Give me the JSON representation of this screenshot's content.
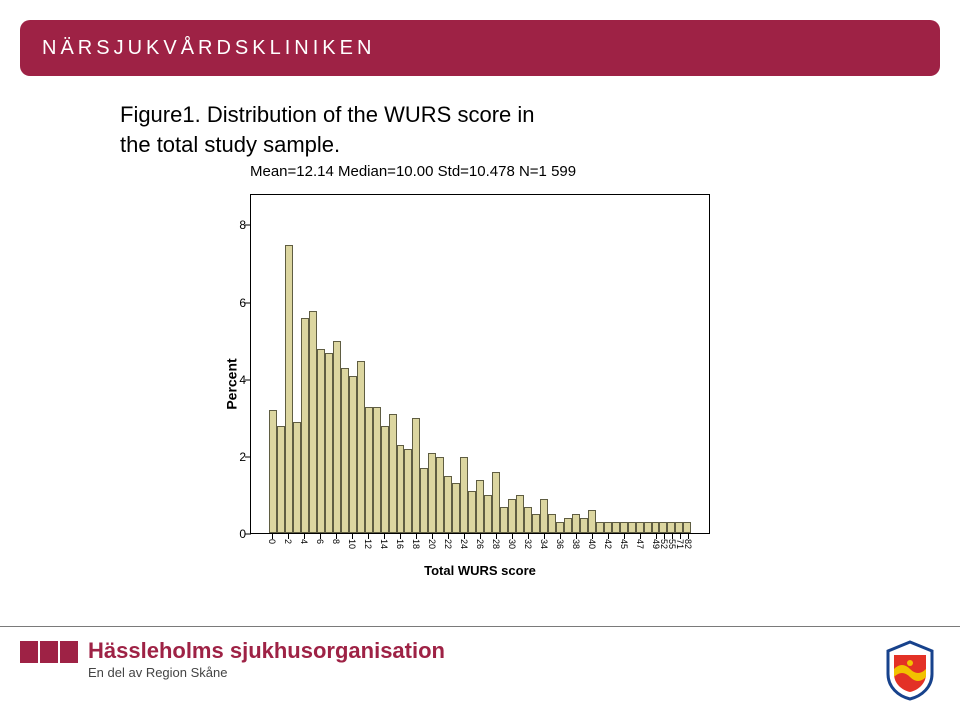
{
  "header": {
    "title": "NÄRSJUKVÅRDSKLINIKEN",
    "bg_color": "#9e2245",
    "text_color": "#ffffff"
  },
  "figure": {
    "title_line1": "Figure1. Distribution of the WURS score in",
    "title_line2": "the total study sample.",
    "stats": "Mean=12.14 Median=10.00 Std=10.478 N=1 599"
  },
  "chart": {
    "type": "bar",
    "ylabel": "Percent",
    "xlabel": "Total WURS score",
    "ylim": [
      0,
      8.8
    ],
    "yticks": [
      0,
      2,
      4,
      6,
      8
    ],
    "xtick_show_every": 2,
    "bar_fill": "#dcd6a0",
    "bar_stroke": "#5f5d42",
    "background": "#ffffff",
    "border_color": "#000000",
    "xtick_labels": [
      "0",
      "2",
      "4",
      "6",
      "8",
      "10",
      "12",
      "14",
      "16",
      "18",
      "20",
      "22",
      "24",
      "26",
      "28",
      "30",
      "32",
      "34",
      "36",
      "38",
      "40",
      "42",
      "45",
      "47",
      "49",
      "52",
      "55",
      "71",
      "82"
    ],
    "xtick_label_rotation": 90,
    "categories": [
      "0",
      "1",
      "2",
      "3",
      "4",
      "5",
      "6",
      "7",
      "8",
      "9",
      "10",
      "11",
      "12",
      "13",
      "14",
      "15",
      "16",
      "17",
      "18",
      "19",
      "20",
      "21",
      "22",
      "23",
      "24",
      "25",
      "26",
      "27",
      "28",
      "29",
      "30",
      "31",
      "32",
      "33",
      "34",
      "35",
      "36",
      "37",
      "38",
      "39",
      "40",
      "41",
      "42",
      "43",
      "45",
      "46",
      "47",
      "48",
      "49",
      "52",
      "55",
      "71",
      "82"
    ],
    "values": [
      3.2,
      2.8,
      7.5,
      2.9,
      5.6,
      5.8,
      4.8,
      4.7,
      5.0,
      4.3,
      4.1,
      4.5,
      3.3,
      3.3,
      2.8,
      3.1,
      2.3,
      2.2,
      3.0,
      1.7,
      2.1,
      2.0,
      1.5,
      1.3,
      2.0,
      1.1,
      1.4,
      1.0,
      1.6,
      0.7,
      0.9,
      1.0,
      0.7,
      0.5,
      0.9,
      0.5,
      0.3,
      0.4,
      0.5,
      0.4,
      0.6,
      0.3,
      0.3,
      0.3,
      0.3,
      0.3,
      0.3,
      0.3,
      0.3,
      0.3,
      0.3,
      0.3,
      0.3
    ]
  },
  "footer": {
    "org": "Hässleholms sjukhusorganisation",
    "sub": "En del av Region Skåne",
    "org_color": "#9e2245",
    "logo_block_color": "#9e2245",
    "region_logo": {
      "stroke": "#17428c",
      "fill": "#e33126",
      "wave": "#f2c200"
    }
  }
}
